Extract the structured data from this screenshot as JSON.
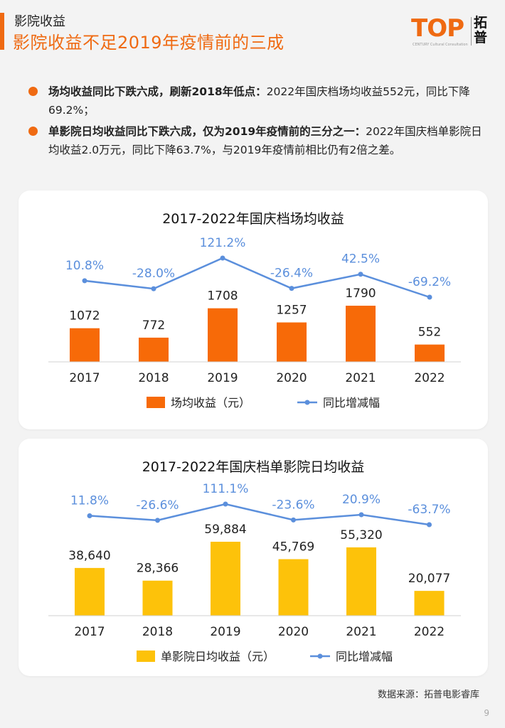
{
  "header": {
    "eyebrow": "影院收益",
    "title": "影院收益不足2019年疫情前的三成",
    "logo_text": "TOP",
    "logo_sub": "CENTURY  Cultural Consultation",
    "logo_cn": "拓普"
  },
  "bullets": [
    {
      "bold": "场均收益同比下跌六成，刷新2018年低点：",
      "text": "2022年国庆档场均收益552元，同比下降69.2%；"
    },
    {
      "bold": "单影院日均收益同比下跌六成，仅为2019年疫情前的三分之一：",
      "text": "2022年国庆档单影院日均收益2.0万元，同比下降63.7%，与2019年疫情前相比仍有2倍之差。"
    }
  ],
  "colors": {
    "accent": "#ef6a12",
    "bar1": "#f76a08",
    "bar2": "#fdc20a",
    "line": "#5b8fdc"
  },
  "chart_data": [
    {
      "type": "bar",
      "title": "2017-2022年国庆档场均收益",
      "categories": [
        "2017",
        "2018",
        "2019",
        "2020",
        "2021",
        "2022"
      ],
      "series": [
        {
          "name": "场均收益（元）",
          "type": "bar",
          "values": [
            1072,
            772,
            1708,
            1257,
            1790,
            552
          ],
          "labels": [
            "1072",
            "772",
            "1708",
            "1257",
            "1790",
            "552"
          ]
        },
        {
          "name": "同比增减幅",
          "type": "line",
          "values": [
            10.8,
            -28.0,
            121.2,
            -26.4,
            42.5,
            -69.2
          ],
          "labels": [
            "10.8%",
            "-28.0%",
            "121.2%",
            "-26.4%",
            "42.5%",
            "-69.2%"
          ]
        }
      ],
      "legend": "bottom"
    },
    {
      "type": "bar",
      "title": "2017-2022年国庆档单影院日均收益",
      "categories": [
        "2017",
        "2018",
        "2019",
        "2020",
        "2021",
        "2022"
      ],
      "series": [
        {
          "name": "单影院日均收益（元）",
          "type": "bar",
          "values": [
            38640,
            28366,
            59884,
            45769,
            55320,
            20077
          ],
          "labels": [
            "38,640",
            "28,366",
            "59,884",
            "45,769",
            "55,320",
            "20,077"
          ]
        },
        {
          "name": "同比增减幅",
          "type": "line",
          "values": [
            11.8,
            -26.6,
            111.1,
            -23.6,
            20.9,
            -63.7
          ],
          "labels": [
            "11.8%",
            "-26.6%",
            "111.1%",
            "-23.6%",
            "20.9%",
            "-63.7%"
          ]
        }
      ],
      "legend": "bottom"
    }
  ],
  "footer": {
    "source": "数据来源：拓普电影睿库",
    "page": "9"
  }
}
